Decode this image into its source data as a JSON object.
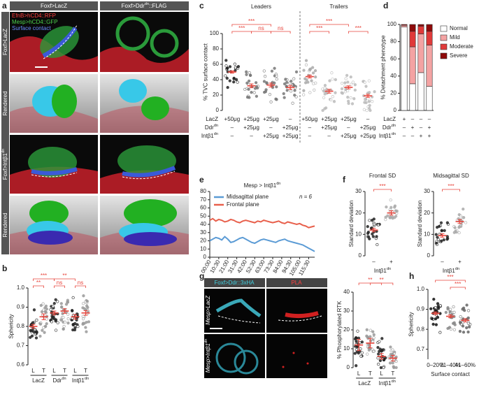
{
  "panels": {
    "letters": [
      "a",
      "b",
      "c",
      "d",
      "e",
      "f",
      "g",
      "h"
    ]
  },
  "images": {
    "a": {
      "columns": [
        "Foxf>LacZ",
        {
          "base": "Foxf>Ddr",
          "sup": "dn",
          "rest": "::FLAG"
        }
      ],
      "rows": [
        "Foxf>LacZ",
        "Rendered",
        {
          "base": "Foxf>Intβ1",
          "sup": "dn"
        },
        "Rendered"
      ],
      "legend": [
        "EfnB>hCD4::RFP",
        "Mesp>hCD4::GFP",
        "Surface contact"
      ]
    },
    "g": {
      "columns": [
        "Foxf>Ddr::3xHA",
        "PLA"
      ],
      "rows": [
        "Mesp>LacZ",
        {
          "base": "Mesp>Intβ1",
          "sup": "dn"
        }
      ]
    }
  },
  "chart_data": [
    {
      "type": "dot",
      "ylabel": "Sphericity",
      "categories": [
        "L",
        "T",
        "L",
        "T",
        "L",
        "T"
      ],
      "groups": [
        "LacZ",
        {
          "base": "Ddr",
          "sup": "dn"
        },
        {
          "base": "Intβ1",
          "sup": "dn"
        }
      ],
      "values": [
        0.8,
        0.85,
        0.87,
        0.88,
        0.85,
        0.87
      ],
      "errors": [
        0.01,
        0.015,
        0.01,
        0.012,
        0.012,
        0.012
      ],
      "colors": [
        "#222222",
        "#9a9a9a",
        "#222222",
        "#9a9a9a",
        "#222222",
        "#9a9a9a"
      ],
      "mean_color": "#e8453c",
      "ylim": [
        0.6,
        1.0
      ],
      "yticks": [
        0.6,
        0.7,
        0.8,
        0.9,
        {
          "value": 1,
          "label": "1.0"
        }
      ],
      "annotations": [
        {
          "text": "***",
          "from": 0,
          "to": 2
        },
        {
          "text": "**",
          "from": 0,
          "to": 1
        },
        {
          "text": "ns",
          "from": 2,
          "to": 3
        },
        {
          "text": "**",
          "from": 2,
          "to": 4
        },
        {
          "text": "ns",
          "from": 4,
          "to": 5
        }
      ]
    },
    {
      "type": "dot",
      "ylabel": "% TVC surface contact",
      "sections": [
        "Leaders",
        "Trailers"
      ],
      "values": [
        50,
        32,
        33,
        30,
        44,
        25,
        30,
        19
      ],
      "errors": [
        1.5,
        2.5,
        2.5,
        2.5,
        1.8,
        2.5,
        2,
        2
      ],
      "colors": [
        "#222222",
        "#777777",
        "#777777",
        "#777777",
        "#aaaaaa",
        "#bbbbbb",
        "#bbbbbb",
        "#bbbbbb"
      ],
      "mean_color": "#e8453c",
      "ylim": [
        0,
        100
      ],
      "yticks": [
        0,
        20,
        40,
        60,
        80,
        100
      ],
      "conditions": [
        {
          "name": "LacZ",
          "cells": [
            "+50μg",
            "+25μg",
            "+25μg",
            "–",
            "+50μg",
            "+25μg",
            "+25μg",
            "–"
          ]
        },
        {
          "name": {
            "base": "Ddr",
            "sup": "dn"
          },
          "cells": [
            "–",
            "+25μg",
            "–",
            "+25μg",
            "–",
            "+25μg",
            "–",
            "+25μg"
          ]
        },
        {
          "name": {
            "base": "Intβ1",
            "sup": "dn"
          },
          "cells": [
            "–",
            "–",
            "+25μg",
            "+25μg",
            "–",
            "–",
            "+25μg",
            "+25μg"
          ]
        }
      ],
      "annotations": [
        {
          "text": "***",
          "from": 0,
          "to": 1
        },
        {
          "text": "***",
          "from": 0,
          "to": 2
        },
        {
          "text": "ns",
          "from": 1,
          "to": 2
        },
        {
          "text": "ns",
          "from": 2,
          "to": 3
        },
        {
          "text": "***",
          "from": 4,
          "to": 5
        },
        {
          "text": "***",
          "from": 4,
          "to": 6
        },
        {
          "text": "***",
          "from": 6,
          "to": 7
        }
      ]
    },
    {
      "type": "stacked_bar",
      "ylabel": "% Detachment phenotype",
      "series": [
        {
          "name": "Normal",
          "color": "#ffffff",
          "values": [
            97,
            31,
            44,
            28
          ]
        },
        {
          "name": "Mild",
          "color": "#f4a3a3",
          "values": [
            2,
            43,
            45,
            48
          ]
        },
        {
          "name": "Moderate",
          "color": "#e03a3a",
          "values": [
            0,
            18,
            9,
            16
          ]
        },
        {
          "name": "Severe",
          "color": "#8e0a0a",
          "values": [
            1,
            8,
            2,
            8
          ]
        }
      ],
      "ylim": [
        0,
        100
      ],
      "yticks": [
        0,
        20,
        40,
        60,
        80,
        100
      ],
      "conditions": [
        {
          "name": "LacZ",
          "cells": [
            "+",
            "–",
            "–",
            "–"
          ]
        },
        {
          "name": {
            "base": "Ddr",
            "sup": "dn"
          },
          "cells": [
            "–",
            "+",
            "–",
            "+"
          ]
        },
        {
          "name": {
            "base": "Intβ1",
            "sup": "dn"
          },
          "cells": [
            "–",
            "–",
            "+",
            "+"
          ]
        }
      ]
    },
    {
      "type": "line",
      "title": {
        "base": "Mesp > Intβ1",
        "sup": "dn"
      },
      "annotation": "n = 6",
      "categories": [
        "00:00",
        null,
        null,
        "10:30",
        null,
        null,
        "21:00",
        null,
        null,
        "31:30",
        null,
        null,
        "42:00",
        null,
        null,
        "52:30",
        null,
        null,
        "63:00",
        null,
        null,
        "73:30",
        null,
        null,
        "84:00",
        null,
        null,
        "94:30",
        null,
        null,
        "105:00",
        null,
        null,
        "115:30",
        null,
        null
      ],
      "series": [
        {
          "name": "Midsagittal plane",
          "color": "#5b9bd5",
          "values": [
            20,
            22,
            24,
            23,
            21,
            25,
            22,
            18,
            19,
            21,
            23,
            24,
            22,
            20,
            18,
            17,
            19,
            21,
            22,
            21,
            20,
            19,
            18,
            20,
            21,
            22,
            20,
            19,
            18,
            17,
            16,
            15,
            13,
            11,
            9,
            7
          ]
        },
        {
          "name": "Frontal plane",
          "color": "#e8604c",
          "values": [
            45,
            47,
            44,
            46,
            45,
            43,
            44,
            46,
            45,
            43,
            42,
            44,
            45,
            44,
            43,
            42,
            44,
            43,
            45,
            44,
            43,
            42,
            43,
            44,
            42,
            41,
            43,
            42,
            41,
            40,
            41,
            39,
            38,
            36,
            37,
            38
          ]
        }
      ],
      "ylim": [
        0,
        80
      ],
      "yticks": [
        0,
        10,
        20,
        30,
        40,
        50,
        60,
        70,
        80
      ]
    },
    {
      "type": "dot",
      "title": "Frontal SD",
      "ylabel": "Standard deviation",
      "xlabel": {
        "base": "Intβ1",
        "sup": "dn"
      },
      "categories": [
        "–",
        "+"
      ],
      "values": [
        12,
        20
      ],
      "errors": [
        0.8,
        1
      ],
      "colors": [
        "#222222",
        "#aaaaaa"
      ],
      "mean_color": "#e8453c",
      "ylim": [
        0,
        30
      ],
      "yticks": [
        0,
        10,
        20,
        30
      ],
      "annotations": [
        {
          "text": "***",
          "from": 0,
          "to": 1
        }
      ]
    },
    {
      "type": "dot",
      "title": "Midsagittal SD",
      "ylabel": "Standard deviation",
      "xlabel": {
        "base": "Intβ1",
        "sup": "dn"
      },
      "categories": [
        "–",
        "+"
      ],
      "values": [
        9.5,
        16
      ],
      "errors": [
        0.8,
        0.9
      ],
      "colors": [
        "#222222",
        "#aaaaaa"
      ],
      "mean_color": "#e8453c",
      "ylim": [
        0,
        30
      ],
      "yticks": [
        0,
        10,
        20,
        30
      ],
      "annotations": [
        {
          "text": "***",
          "from": 0,
          "to": 1
        }
      ]
    },
    {
      "type": "dot",
      "ylabel": "% Phosphorylated RTK",
      "categories": [
        "L",
        "T",
        "L",
        "T"
      ],
      "groups": [
        "LacZ",
        {
          "base": "Intβ1",
          "sup": "dn"
        }
      ],
      "values": [
        12,
        13,
        6,
        5
      ],
      "errors": [
        3,
        2.5,
        1.5,
        1.5
      ],
      "colors": [
        "#222222",
        "#999999",
        "#222222",
        "#999999"
      ],
      "mean_color": "#e8453c",
      "ylim": [
        0,
        40
      ],
      "yticks": [
        0,
        10,
        20,
        30,
        40
      ],
      "annotations": [
        {
          "text": "**",
          "from": 0,
          "to": 2
        },
        {
          "text": "**",
          "from": 1,
          "to": 3
        }
      ]
    },
    {
      "type": "dot",
      "ylabel": "Sphericity",
      "xlabel": "Surface contact",
      "categories": [
        "0–20%",
        "21–40%",
        "41–60%"
      ],
      "values": [
        0.88,
        0.865,
        0.845
      ],
      "errors": [
        0.007,
        0.007,
        0.008
      ],
      "colors": [
        "#111111",
        "#888888",
        "#666666"
      ],
      "mean_color": "#e8453c",
      "ylim": [
        0.65,
        1.0
      ],
      "yticks": [
        0.7,
        0.8,
        0.9,
        {
          "value": 1,
          "label": "1.0"
        }
      ],
      "annotations": [
        {
          "text": "***",
          "from": 0,
          "to": 2
        },
        {
          "text": "***",
          "from": 1,
          "to": 2
        }
      ]
    }
  ]
}
